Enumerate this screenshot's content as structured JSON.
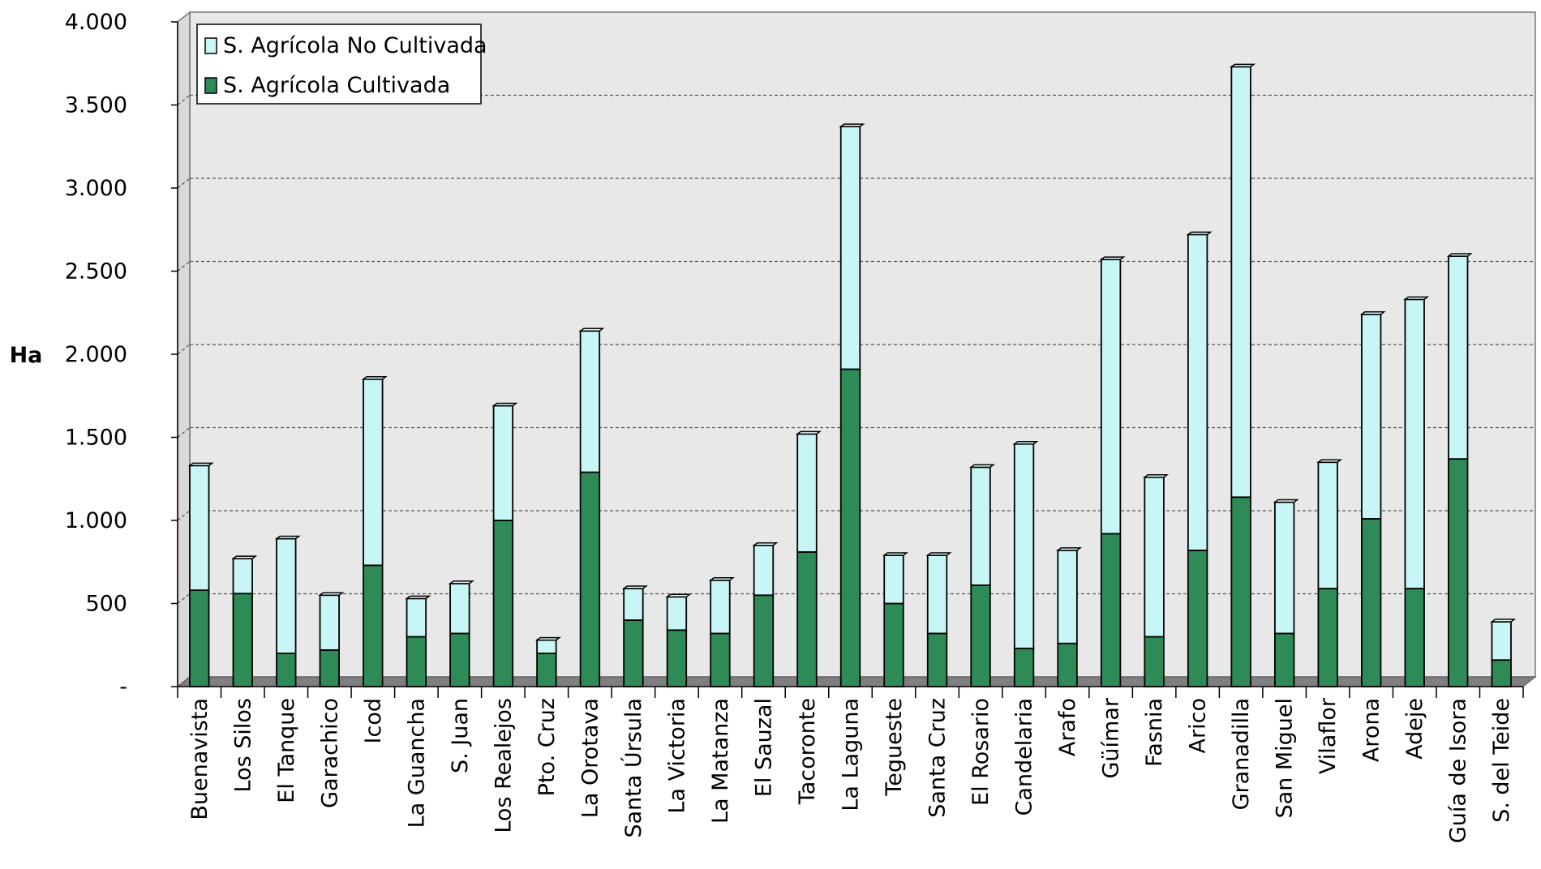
{
  "chart_data": {
    "type": "bar",
    "stacked": true,
    "title": "",
    "xlabel": "",
    "ylabel": "Ha",
    "ylim": [
      0,
      4000
    ],
    "yticks": [
      0,
      500,
      1000,
      1500,
      2000,
      2500,
      3000,
      3500,
      4000
    ],
    "ytick_labels": [
      "-",
      "500",
      "1.000",
      "1.500",
      "2.000",
      "2.500",
      "3.000",
      "3.500",
      "4.000"
    ],
    "grid": true,
    "legend_position": "top-left",
    "categories": [
      "Buenavista",
      "Los Silos",
      "El Tanque",
      "Garachico",
      "Icod",
      "La Guancha",
      "S. Juan",
      "Los Realejos",
      "Pto. Cruz",
      "La Orotava",
      "Santa Úrsula",
      "La Victoria",
      "La Matanza",
      "El Sauzal",
      "Tacoronte",
      "La Laguna",
      "Tegueste",
      "Santa Cruz",
      "El Rosario",
      "Candelaria",
      "Arafo",
      "Güímar",
      "Fasnia",
      "Arico",
      "Granadilla",
      "San Miguel",
      "Vilaflor",
      "Arona",
      "Adeje",
      "Guía de Isora",
      "S. del Teide"
    ],
    "series": [
      {
        "name": "S. Agrícola Cultivada",
        "color": "#2e8b57",
        "values": [
          580,
          560,
          200,
          220,
          730,
          300,
          320,
          1000,
          200,
          1290,
          400,
          340,
          320,
          550,
          810,
          1910,
          500,
          320,
          610,
          230,
          260,
          920,
          300,
          820,
          1140,
          320,
          590,
          1010,
          590,
          1370,
          160
        ]
      },
      {
        "name": "S. Agrícola No Cultivada",
        "color": "#c8f5f5",
        "values": [
          750,
          210,
          690,
          330,
          1120,
          230,
          300,
          690,
          80,
          850,
          190,
          200,
          320,
          300,
          710,
          1460,
          290,
          470,
          710,
          1230,
          560,
          1650,
          960,
          1900,
          2590,
          790,
          760,
          1230,
          1740,
          1220,
          230
        ]
      }
    ],
    "colors": {
      "wall": "#e8e8e8",
      "floor": "#7f7f7f",
      "gridline": "#555555"
    }
  }
}
